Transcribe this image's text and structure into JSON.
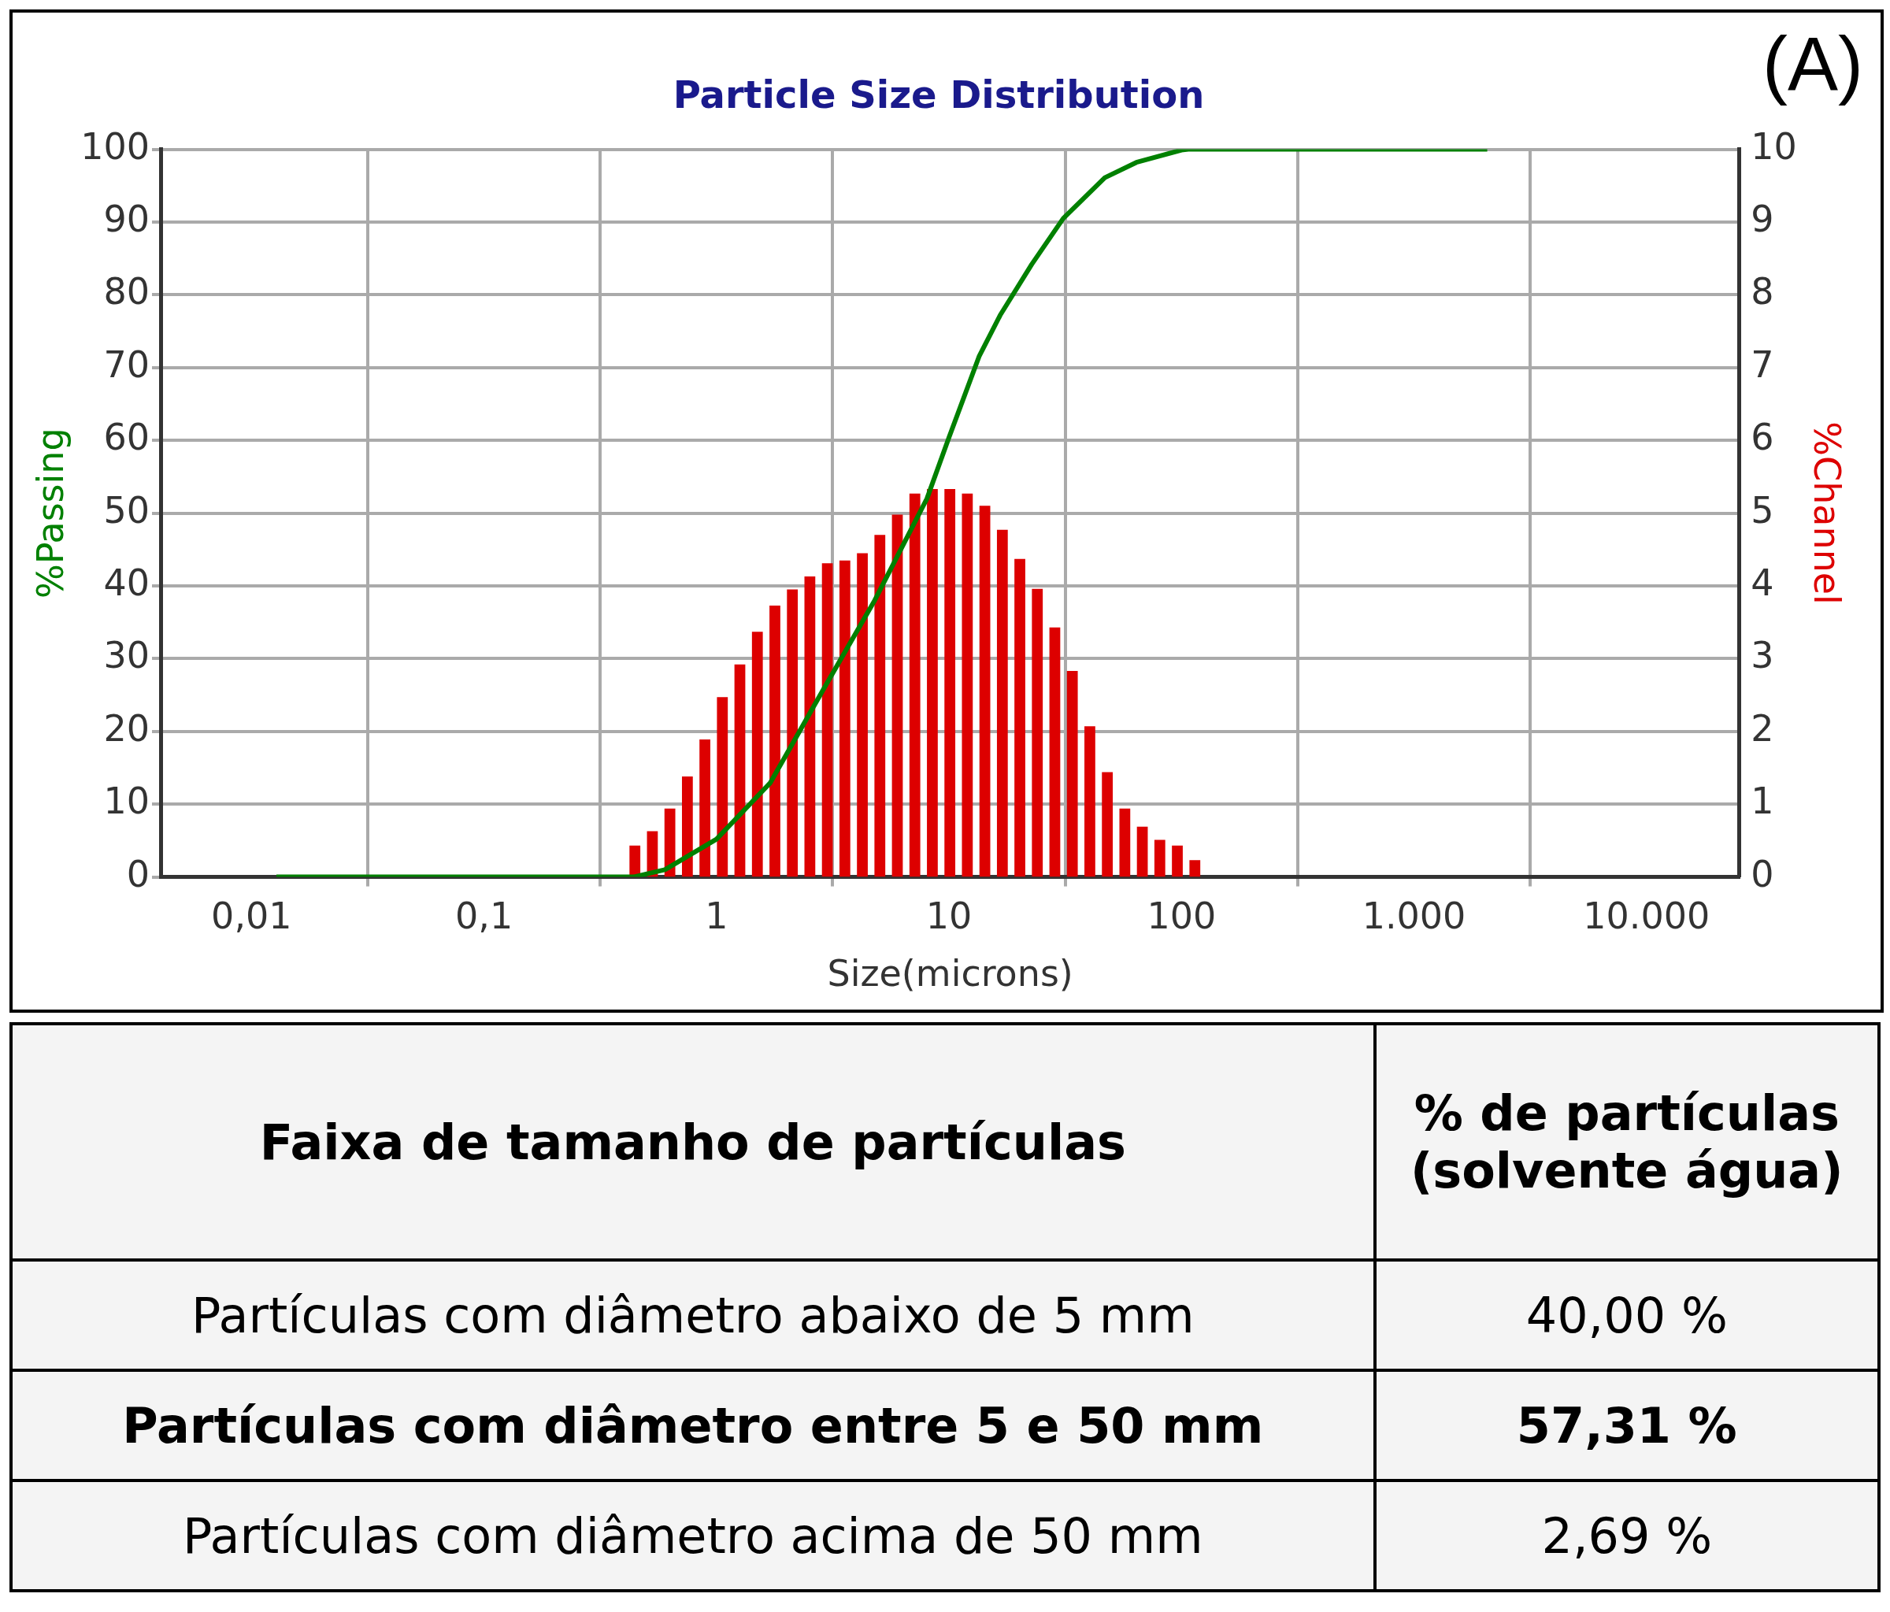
{
  "chart_data": {
    "type": "histogram",
    "title": "Particle Size Distribution",
    "xlabel": "Size(microns)",
    "ylabel": "%Passing",
    "y2label": "%Channel",
    "log": "x",
    "grid": true,
    "legend": false,
    "xlim": [
      0.0041,
      25000
    ],
    "xticks": [
      {
        "value": 0.01,
        "label": "0,01"
      },
      {
        "value": 0.1,
        "label": "0,1"
      },
      1,
      10,
      100,
      {
        "value": 1000,
        "label": "1.000"
      },
      {
        "value": 10000,
        "label": "10.000"
      }
    ],
    "ylim": [
      0,
      100
    ],
    "yticks": [
      0,
      10,
      20,
      30,
      40,
      50,
      60,
      70,
      80,
      90,
      100
    ],
    "y2lim": [
      0,
      10
    ],
    "y2ticks": [
      0,
      1,
      2,
      3,
      4,
      5,
      6,
      7,
      8,
      9,
      10
    ],
    "series": [
      {
        "axis": "y2",
        "color": "#dd0000",
        "bins": [
          0.4088,
          0.4861,
          0.5781,
          0.6875,
          0.8176,
          0.9723,
          1.156,
          1.375,
          1.635,
          1.945,
          2.312,
          2.75,
          3.27,
          3.889,
          4.625,
          5.5,
          6.541,
          7.778,
          9.25,
          11,
          13.08,
          15.56,
          18.5,
          22,
          26.16,
          31.11,
          37,
          44,
          52.33,
          62.23,
          74,
          88,
          104.7,
          124.5
        ],
        "values": [
          0.43,
          0.63,
          0.94,
          1.38,
          1.89,
          2.47,
          2.92,
          3.37,
          3.73,
          3.95,
          4.13,
          4.31,
          4.35,
          4.45,
          4.7,
          4.98,
          5.27,
          5.33,
          5.33,
          5.27,
          5.1,
          4.77,
          4.37,
          3.96,
          3.43,
          2.83,
          2.07,
          1.44,
          0.94,
          0.69,
          0.51,
          0.43,
          0.23
        ]
      },
      {
        "type": "line",
        "color": "#008000",
        "x": [
          0.0128,
          0.44,
          0.6,
          1,
          1.7,
          2.85,
          4.79,
          8.04,
          10,
          13.5,
          16.6,
          22.7,
          31,
          46.8,
          64,
          100,
          107,
          2066
        ],
        "values": [
          0,
          0,
          1,
          5.2,
          12.9,
          25.5,
          38,
          52,
          60.4,
          71.6,
          77.2,
          84.2,
          90.5,
          96.1,
          98.2,
          99.9,
          100,
          100
        ]
      }
    ],
    "annotations": [
      "(A)",
      "Faixa de tamanho de partículas",
      "% de partículas (solvente água)",
      "Partículas com diâmetro abaixo de 5 mm",
      "40,00 %",
      "Partículas com diâmetro entre 5 e 50 mm",
      "57,31 %",
      "Partículas com diâmetro acima de 50 mm",
      "2,69 %"
    ]
  }
}
